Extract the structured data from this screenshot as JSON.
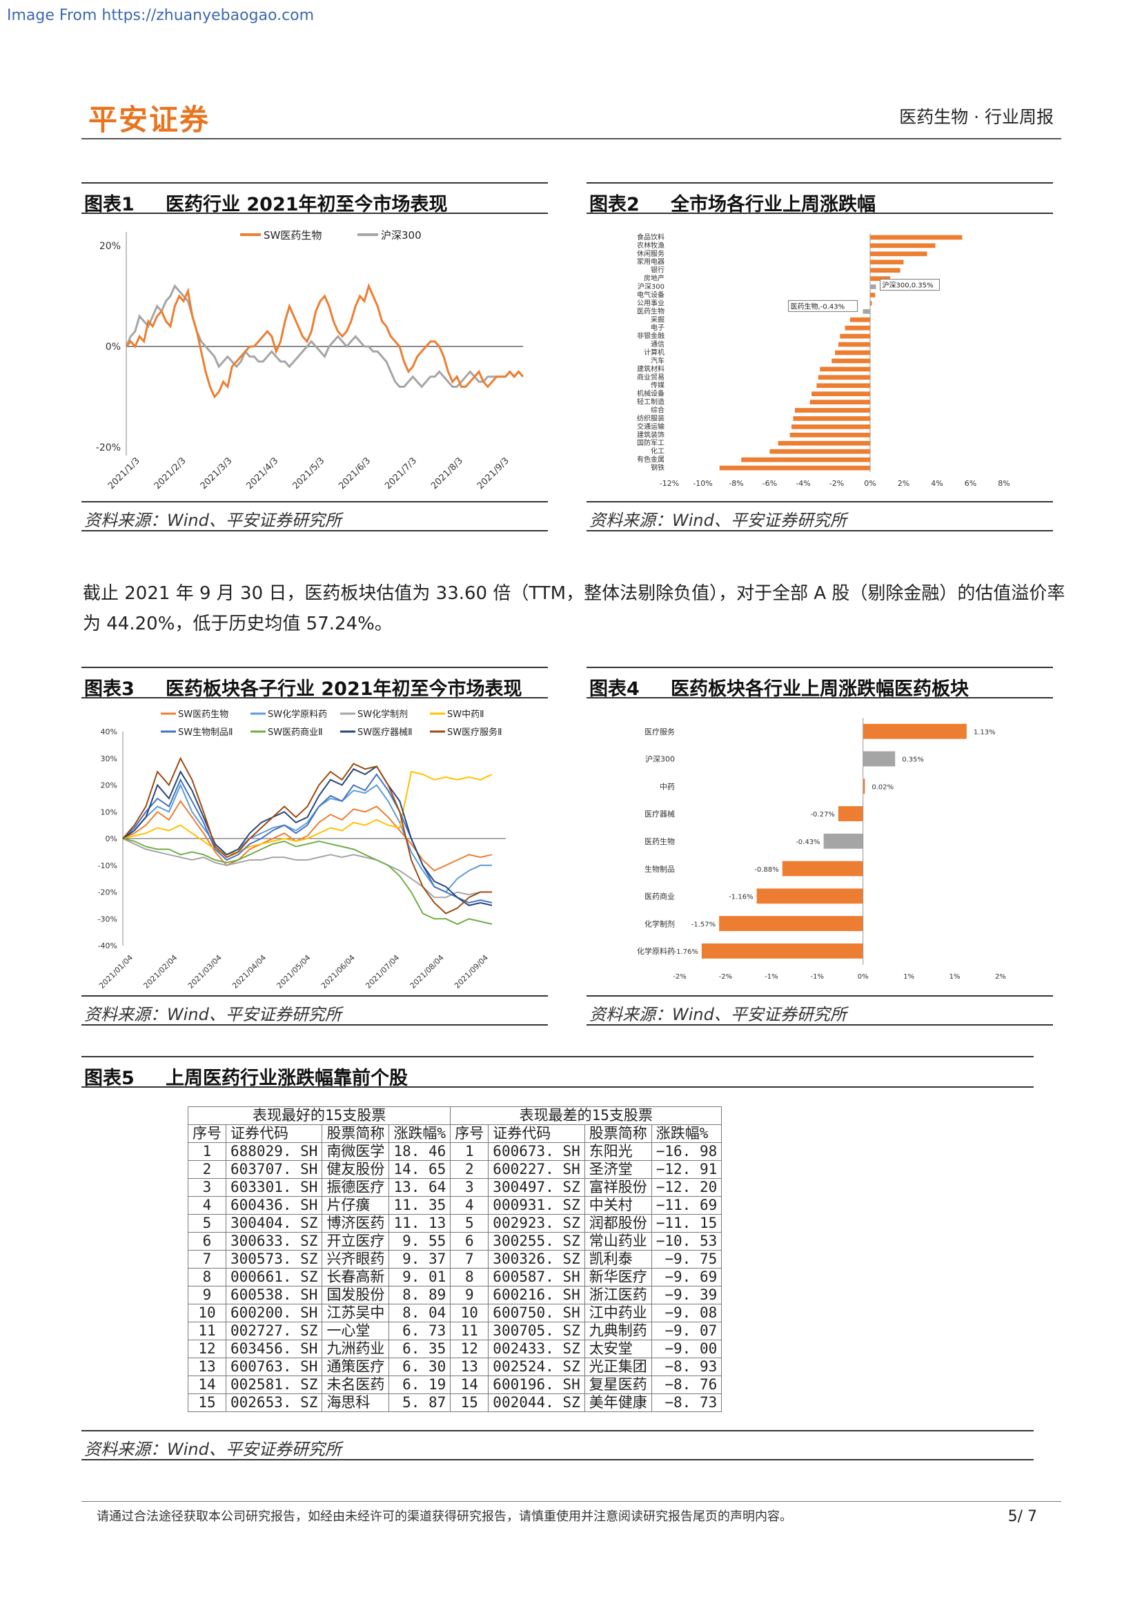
{
  "watermark": "Image From https://zhuanyebaogao.com",
  "header": {
    "logo": "平安证券",
    "right": "医药生物 · 行业周报"
  },
  "fig1": {
    "num": "图表1",
    "title": "医药行业 2021年初至今市场表现",
    "source": "资料来源：Wind、平安证券研究所",
    "chart_data": {
      "type": "line",
      "series_names": [
        "SW医药生物",
        "沪深300"
      ],
      "series_colors": [
        "#ed7d31",
        "#a5a5a5"
      ],
      "y_ticks": [
        "20%",
        "0%",
        "-20%"
      ],
      "ylim": [
        -20,
        20
      ],
      "x_ticks": [
        "2021/1/3",
        "2021/2/3",
        "2021/3/3",
        "2021/4/3",
        "2021/5/3",
        "2021/6/3",
        "2021/7/3",
        "2021/8/3",
        "2021/9/3"
      ],
      "series": [
        {
          "name": "SW医药生物",
          "values": [
            0,
            1,
            0,
            2,
            1,
            5,
            4,
            6,
            7,
            5,
            4,
            8,
            10,
            9,
            11,
            6,
            3,
            -1,
            -5,
            -8,
            -10,
            -9,
            -7,
            -8,
            -4,
            -3,
            -2,
            -1,
            0,
            0,
            1,
            2,
            3,
            2,
            -1,
            1,
            5,
            8,
            6,
            4,
            2,
            1,
            3,
            7,
            9,
            10,
            8,
            5,
            3,
            2,
            3,
            5,
            8,
            10,
            9,
            12,
            10,
            8,
            5,
            4,
            2,
            1,
            0,
            -3,
            -5,
            -4,
            -2,
            -1,
            0,
            1,
            1,
            0,
            -2,
            -5,
            -7,
            -6,
            -8,
            -8,
            -7,
            -6,
            -5,
            -7,
            -8,
            -7,
            -6,
            -6,
            -6,
            -5,
            -6,
            -5,
            -6
          ]
        },
        {
          "name": "沪深300",
          "values": [
            0,
            2,
            3,
            6,
            5,
            4,
            6,
            8,
            7,
            9,
            10,
            12,
            11,
            10,
            9,
            6,
            3,
            1,
            0,
            -1,
            -2,
            -4,
            -3,
            -2,
            -3,
            -4,
            -3,
            -1,
            -2,
            -2,
            -3,
            -3,
            -2,
            -1,
            -2,
            -3,
            -3,
            -4,
            -3,
            -2,
            -1,
            0,
            1,
            0,
            -1,
            -2,
            0,
            1,
            2,
            1,
            0,
            1,
            2,
            1,
            0,
            0,
            -1,
            -1,
            -2,
            -3,
            -5,
            -7,
            -8,
            -8,
            -7,
            -6,
            -7,
            -8,
            -7,
            -6,
            -6,
            -5,
            -6,
            -7,
            -8,
            -8,
            -7,
            -6,
            -5,
            -6,
            -7,
            -7,
            -6,
            -6,
            -6,
            -6,
            -6,
            -5,
            -6,
            -5,
            -6
          ]
        }
      ]
    }
  },
  "fig2": {
    "num": "图表2",
    "title": "全市场各行业上周涨跌幅",
    "source": "资料来源：Wind、平安证券研究所",
    "chart_data": {
      "type": "bar",
      "orientation": "horizontal",
      "categories": [
        "食品饮料",
        "农林牧渔",
        "休闲服务",
        "家用电器",
        "银行",
        "房地产",
        "沪深300",
        "电气设备",
        "公用事业",
        "医药生物",
        "采掘",
        "电子",
        "非银金融",
        "通信",
        "计算机",
        "汽车",
        "建筑材料",
        "商业贸易",
        "传媒",
        "机械设备",
        "轻工制造",
        "综合",
        "纺织服装",
        "交通运输",
        "建筑装饰",
        "国防军工",
        "化工",
        "有色金属",
        "钢铁"
      ],
      "values": [
        5.5,
        3.9,
        3.4,
        2.0,
        1.8,
        1.2,
        0.35,
        0.3,
        0.1,
        -0.43,
        -1.2,
        -1.5,
        -1.8,
        -1.9,
        -2.1,
        -2.3,
        -3.0,
        -3.1,
        -3.2,
        -3.5,
        -3.6,
        -4.5,
        -4.6,
        -4.7,
        -4.8,
        -5.5,
        -6.0,
        -7.7,
        -9.0
      ],
      "callouts": [
        "沪深300,0.35%",
        "医药生物,-0.43%"
      ],
      "x_ticks": [
        "-12%",
        "-10%",
        "-8%",
        "-6%",
        "-4%",
        "-2%",
        "0%",
        "2%",
        "4%",
        "6%",
        "8%"
      ],
      "xlim": [
        -12,
        8
      ],
      "colors": {
        "bar": "#ed7d31",
        "highlight": "#a5a5a5"
      }
    }
  },
  "paragraph": "截止 2021 年 9 月 30 日，医药板块估值为 33.60 倍（TTM，整体法剔除负值），对于全部 A 股（剔除金融）的估值溢价率为 44.20%，低于历史均值 57.24%。",
  "fig3": {
    "num": "图表3",
    "title": "医药板块各子行业 2021年初至今市场表现",
    "source": "资料来源：Wind、平安证券研究所",
    "chart_data": {
      "type": "line",
      "legend": [
        {
          "name": "SW医药生物",
          "color": "#ed7d31"
        },
        {
          "name": "SW化学原料药",
          "color": "#5b9bd5"
        },
        {
          "name": "SW化学制剂",
          "color": "#a5a5a5"
        },
        {
          "name": "SW中药Ⅱ",
          "color": "#ffc000"
        },
        {
          "name": "SW生物制品Ⅱ",
          "color": "#4472c4"
        },
        {
          "name": "SW医药商业Ⅱ",
          "color": "#70ad47"
        },
        {
          "name": "SW医疗器械Ⅱ",
          "color": "#264478"
        },
        {
          "name": "SW医疗服务Ⅱ",
          "color": "#9e480e"
        }
      ],
      "y_ticks": [
        "40%",
        "30%",
        "20%",
        "10%",
        "0%",
        "-10%",
        "-20%",
        "-30%",
        "-40%"
      ],
      "ylim": [
        -40,
        40
      ],
      "x_ticks": [
        "2021/01/04",
        "2021/02/04",
        "2021/03/04",
        "2021/04/04",
        "2021/05/04",
        "2021/06/04",
        "2021/07/04",
        "2021/08/04",
        "2021/09/04"
      ],
      "series": [
        {
          "name": "SW医药生物",
          "values": [
            0,
            2,
            5,
            10,
            7,
            14,
            8,
            2,
            -5,
            -10,
            -8,
            -4,
            -2,
            0,
            2,
            -1,
            1,
            6,
            9,
            7,
            11,
            10,
            12,
            8,
            3,
            -2,
            -8,
            -12,
            -10,
            -8,
            -6,
            -7,
            -6
          ]
        },
        {
          "name": "SW化学原料药",
          "values": [
            0,
            3,
            8,
            12,
            10,
            20,
            10,
            4,
            -2,
            -6,
            -4,
            0,
            2,
            4,
            5,
            3,
            6,
            12,
            15,
            14,
            18,
            17,
            20,
            14,
            6,
            -5,
            -12,
            -18,
            -20,
            -15,
            -12,
            -10,
            -10
          ]
        },
        {
          "name": "SW化学制剂",
          "values": [
            0,
            -2,
            -4,
            -5,
            -6,
            -7,
            -8,
            -7,
            -9,
            -10,
            -9,
            -8,
            -8,
            -7,
            -7,
            -8,
            -8,
            -7,
            -6,
            -7,
            -6,
            -7,
            -8,
            -10,
            -12,
            -15,
            -18,
            -22,
            -22,
            -20,
            -21,
            -20,
            -20
          ]
        },
        {
          "name": "SW中药Ⅱ",
          "values": [
            0,
            1,
            2,
            4,
            3,
            5,
            2,
            -1,
            -4,
            -6,
            -5,
            -3,
            -2,
            -1,
            0,
            -1,
            0,
            2,
            4,
            3,
            6,
            5,
            7,
            5,
            4,
            25,
            24,
            22,
            23,
            22,
            23,
            22,
            24
          ]
        },
        {
          "name": "SW生物制品Ⅱ",
          "values": [
            0,
            4,
            10,
            15,
            12,
            22,
            14,
            6,
            -4,
            -8,
            -6,
            -2,
            0,
            3,
            5,
            2,
            5,
            12,
            16,
            14,
            20,
            18,
            24,
            18,
            10,
            0,
            -10,
            -18,
            -20,
            -22,
            -24,
            -23,
            -24
          ]
        },
        {
          "name": "SW医药商业Ⅱ",
          "values": [
            0,
            -1,
            -3,
            -4,
            -4,
            -6,
            -5,
            -6,
            -8,
            -9,
            -8,
            -6,
            -4,
            -2,
            -1,
            -3,
            -2,
            -1,
            -2,
            -3,
            -4,
            -6,
            -8,
            -10,
            -14,
            -20,
            -28,
            -30,
            -30,
            -32,
            -30,
            -31,
            -32
          ]
        },
        {
          "name": "SW医疗器械Ⅱ",
          "values": [
            0,
            3,
            8,
            20,
            15,
            25,
            18,
            8,
            -2,
            -6,
            -4,
            2,
            6,
            8,
            10,
            6,
            8,
            16,
            22,
            20,
            26,
            24,
            27,
            20,
            14,
            0,
            -10,
            -16,
            -18,
            -22,
            -25,
            -24,
            -25
          ]
        },
        {
          "name": "SW医疗服务Ⅱ",
          "values": [
            0,
            5,
            12,
            25,
            20,
            30,
            22,
            10,
            -3,
            -7,
            -5,
            0,
            4,
            8,
            12,
            8,
            12,
            20,
            25,
            22,
            28,
            26,
            27,
            20,
            10,
            -8,
            -18,
            -24,
            -28,
            -26,
            -22,
            -20,
            -20
          ]
        }
      ]
    }
  },
  "fig4": {
    "num": "图表4",
    "title": "医药板块各行业上周涨跌幅医药板块",
    "source": "资料来源：Wind、平安证券研究所",
    "chart_data": {
      "type": "bar",
      "orientation": "horizontal",
      "categories": [
        "医疗服务",
        "沪深300",
        "中药",
        "医疗器械",
        "医药生物",
        "生物制品",
        "医药商业",
        "化学制剂",
        "化学原料药"
      ],
      "values": [
        1.13,
        0.35,
        0.02,
        -0.27,
        -0.43,
        -0.88,
        -1.16,
        -1.57,
        -1.76
      ],
      "labels": [
        "1.13%",
        "0.35%",
        "0.02%",
        "-0.27%",
        "-0.43%",
        "-0.88%",
        "-1.16%",
        "-1.57%",
        "-1.76%"
      ],
      "x_ticks": [
        "-2%",
        "-2%",
        "-1%",
        "-1%",
        "0%",
        "1%",
        "1%",
        "2%"
      ],
      "xlim": [
        -2.0,
        1.5
      ],
      "colors": {
        "bar": "#ed7d31",
        "highlight": "#a5a5a5"
      }
    }
  },
  "fig5": {
    "num": "图表5",
    "title": "上周医药行业涨跌幅靠前个股",
    "source": "资料来源：Wind、平安证券研究所",
    "best_title": "表现最好的15支股票",
    "worst_title": "表现最差的15支股票",
    "headers": [
      "序号",
      "证券代码",
      "股票简称",
      "涨跌幅%"
    ],
    "best": [
      [
        "1",
        "688029. SH",
        "南微医学",
        "18. 46"
      ],
      [
        "2",
        "603707. SH",
        "健友股份",
        "14. 65"
      ],
      [
        "3",
        "603301. SH",
        "振德医疗",
        "13. 64"
      ],
      [
        "4",
        "600436. SH",
        "片仔癀",
        "11. 35"
      ],
      [
        "5",
        "300404. SZ",
        "博济医药",
        "11. 13"
      ],
      [
        "6",
        "300633. SZ",
        "开立医疗",
        "9. 55"
      ],
      [
        "7",
        "300573. SZ",
        "兴齐眼药",
        "9. 37"
      ],
      [
        "8",
        "000661. SZ",
        "长春高新",
        "9. 01"
      ],
      [
        "9",
        "600538. SH",
        "国发股份",
        "8. 89"
      ],
      [
        "10",
        "600200. SH",
        "江苏吴中",
        "8. 04"
      ],
      [
        "11",
        "002727. SZ",
        "一心堂",
        "6. 73"
      ],
      [
        "12",
        "603456. SH",
        "九洲药业",
        "6. 35"
      ],
      [
        "13",
        "600763. SH",
        "通策医疗",
        "6. 30"
      ],
      [
        "14",
        "002581. SZ",
        "未名医药",
        "6. 19"
      ],
      [
        "15",
        "002653. SZ",
        "海思科",
        "5. 87"
      ]
    ],
    "worst": [
      [
        "1",
        "600673. SH",
        "东阳光",
        "−16. 98"
      ],
      [
        "2",
        "600227. SH",
        "圣济堂",
        "−12. 91"
      ],
      [
        "3",
        "300497. SZ",
        "富祥股份",
        "−12. 20"
      ],
      [
        "4",
        "000931. SZ",
        "中关村",
        "−11. 69"
      ],
      [
        "5",
        "002923. SZ",
        "润都股份",
        "−11. 15"
      ],
      [
        "6",
        "300255. SZ",
        "常山药业",
        "−10. 53"
      ],
      [
        "7",
        "300326. SZ",
        "凯利泰",
        "−9. 75"
      ],
      [
        "8",
        "600587. SH",
        "新华医疗",
        "−9. 69"
      ],
      [
        "9",
        "600216. SH",
        "浙江医药",
        "−9. 39"
      ],
      [
        "10",
        "600750. SH",
        "江中药业",
        "−9. 08"
      ],
      [
        "11",
        "300705. SZ",
        "九典制药",
        "−9. 07"
      ],
      [
        "12",
        "002433. SZ",
        "太安堂",
        "−9. 00"
      ],
      [
        "13",
        "002524. SZ",
        "光正集团",
        "−8. 93"
      ],
      [
        "14",
        "600196. SH",
        "复星医药",
        "−8. 76"
      ],
      [
        "15",
        "002044. SZ",
        "美年健康",
        "−8. 73"
      ]
    ]
  },
  "footer": {
    "disclaimer": "请通过合法途径获取本公司研究报告，如经由未经许可的渠道获得研究报告，请慎重使用并注意阅读研究报告尾页的声明内容。",
    "page": "5/ 7"
  }
}
